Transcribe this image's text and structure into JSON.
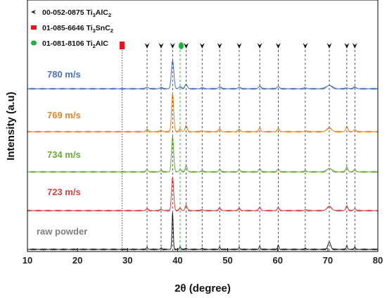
{
  "chart_data": {
    "type": "line",
    "xlabel": "2θ (degree)",
    "ylabel": "Intensity (a.u)",
    "xlim": [
      10,
      80
    ],
    "xticks": [
      10,
      20,
      30,
      40,
      50,
      60,
      70,
      80
    ],
    "legend_position": "top-left",
    "legend": [
      {
        "code": "00-052-0875",
        "phase": "Ti",
        "sub1": "3",
        "mid": "AlC",
        "sub2": "2",
        "marker": "arrowhead",
        "color": "#111111"
      },
      {
        "code": "01-085-6646",
        "phase": "Ti",
        "sub1": "3",
        "mid": "SnC",
        "sub2": "2",
        "marker": "square",
        "color": "#e8141c"
      },
      {
        "code": "01-081-8106",
        "phase": "Ti",
        "sub1": "2",
        "mid": "AlC",
        "sub2": "",
        "marker": "circle",
        "color": "#1db33a"
      }
    ],
    "reference_lines": {
      "Ti3AlC2": [
        33.9,
        36.7,
        39.0,
        41.7,
        44.9,
        48.4,
        52.3,
        56.4,
        60.1,
        65.5,
        70.3,
        73.8,
        75.4
      ],
      "Ti3SnC2": [
        28.9
      ],
      "Ti2AlC": [
        40.5
      ]
    },
    "peaks": [
      {
        "x": 33.9,
        "h": 0.06
      },
      {
        "x": 36.7,
        "h": 0.04
      },
      {
        "x": 39.0,
        "h": 1.0
      },
      {
        "x": 40.5,
        "h": 0.07
      },
      {
        "x": 41.7,
        "h": 0.16
      },
      {
        "x": 44.9,
        "h": 0.03
      },
      {
        "x": 48.4,
        "h": 0.07
      },
      {
        "x": 52.3,
        "h": 0.06
      },
      {
        "x": 56.4,
        "h": 0.09
      },
      {
        "x": 60.1,
        "h": 0.08
      },
      {
        "x": 65.5,
        "h": 0.03
      },
      {
        "x": 70.3,
        "h": 0.2
      },
      {
        "x": 73.8,
        "h": 0.14
      },
      {
        "x": 75.4,
        "h": 0.06
      }
    ],
    "series": [
      {
        "name": "780 m/s",
        "color": "#4a72b8",
        "scale": 40,
        "width": 0.35,
        "extra": [
          {
            "x": 70.3,
            "h": 0.12
          },
          {
            "x": 73.8,
            "h": 0.03
          }
        ]
      },
      {
        "name": "769 m/s",
        "color": "#e0862a",
        "scale": 54,
        "width": 0.3,
        "extra": [
          {
            "x": 70.3,
            "h": 0.1
          }
        ]
      },
      {
        "name": "734 m/s",
        "color": "#6aa83a",
        "scale": 50,
        "width": 0.3,
        "extra": [
          {
            "x": 70.3,
            "h": 0.1
          }
        ]
      },
      {
        "name": "723 m/s",
        "color": "#d04545",
        "scale": 48,
        "width": 0.3,
        "extra": [
          {
            "x": 70.3,
            "h": 0.12
          }
        ]
      },
      {
        "name": "raw powder",
        "color": "#7f7f7f",
        "scale": 52,
        "width": 0.18,
        "line_color": "#222222",
        "extra": [
          {
            "x": 60.1,
            "h": 0.12
          },
          {
            "x": 73.8,
            "h": 0.1
          },
          {
            "x": 33.9,
            "h": 0.06
          },
          {
            "x": 41.7,
            "h": 0.03
          }
        ]
      }
    ]
  }
}
